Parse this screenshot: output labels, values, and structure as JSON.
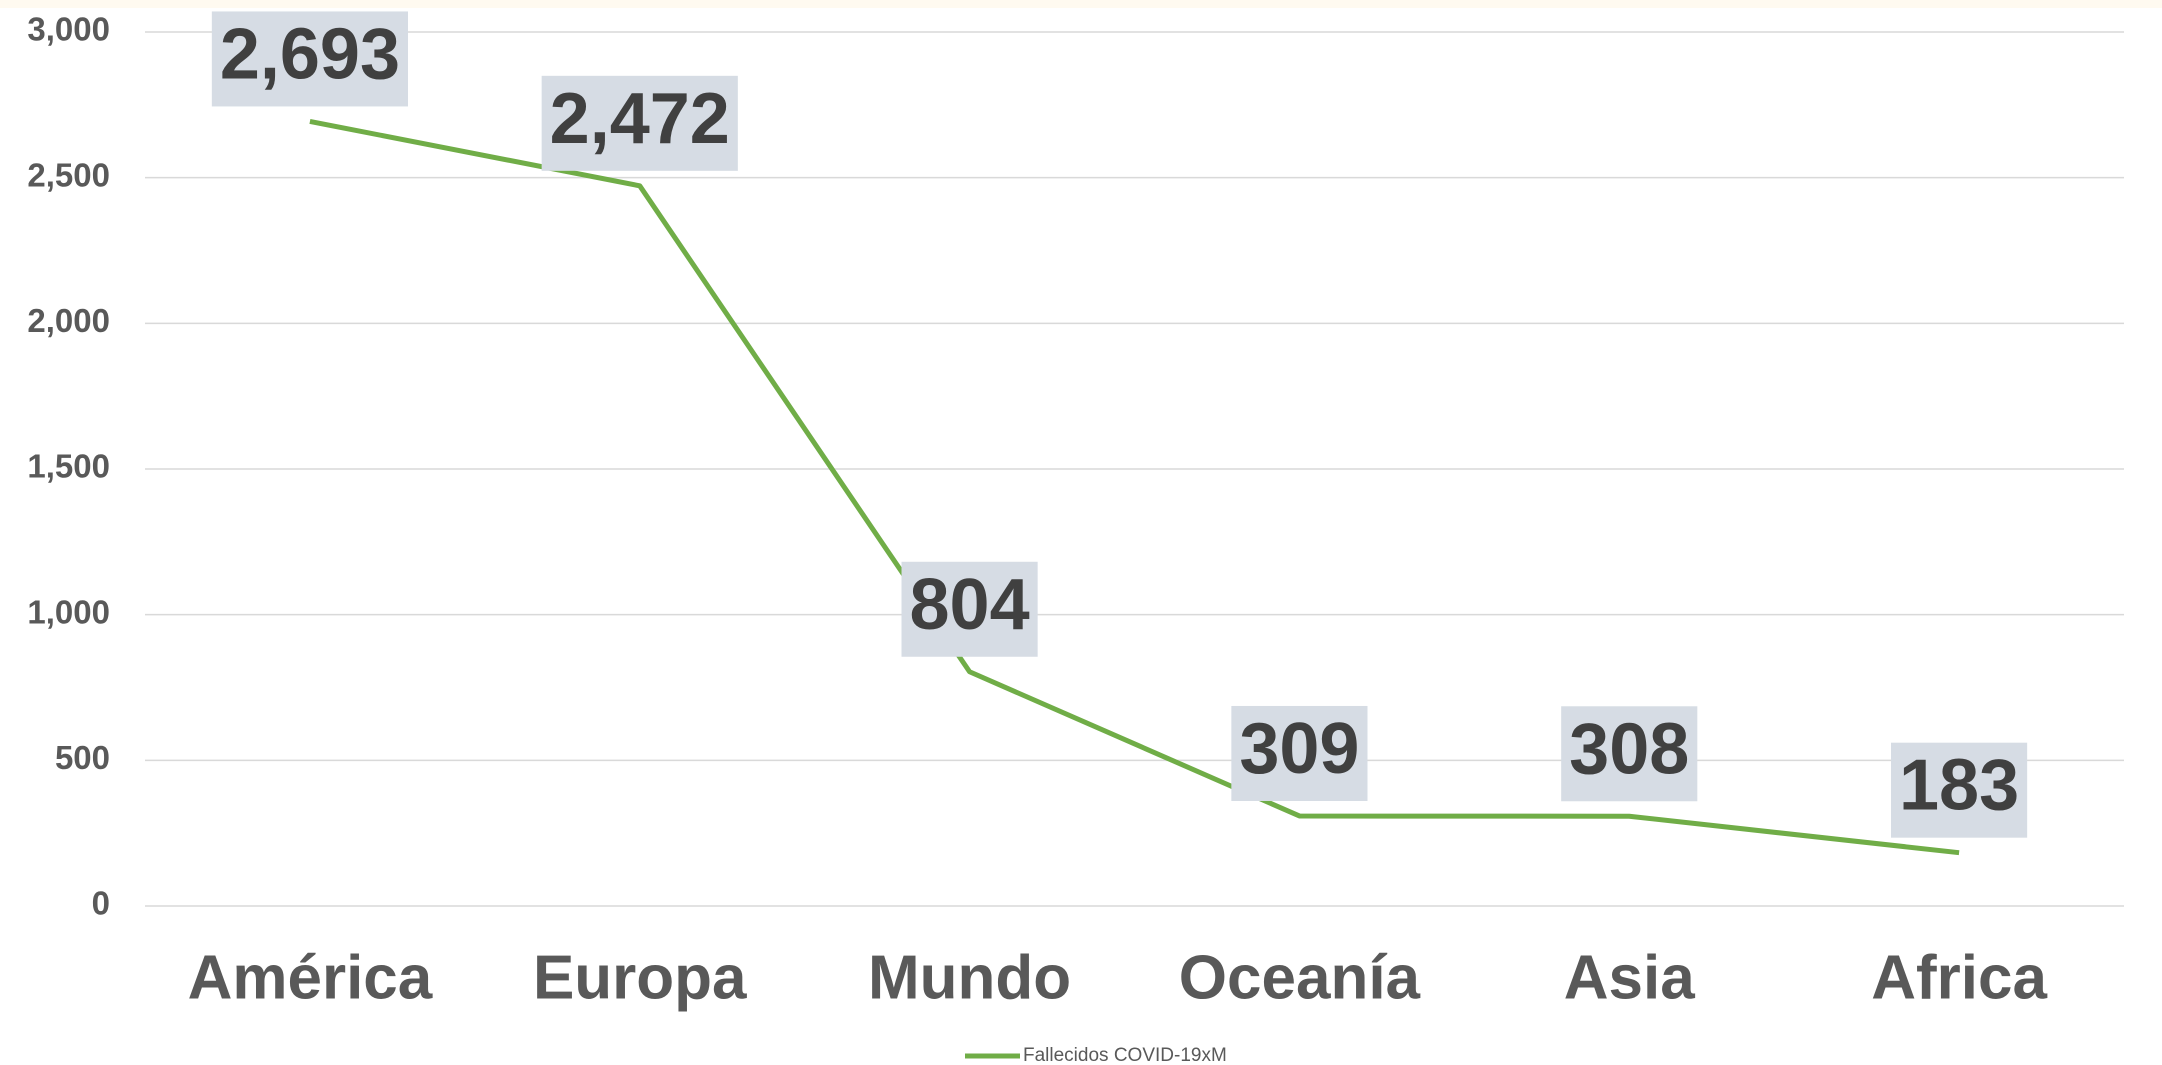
{
  "chart_data": {
    "type": "line",
    "categories": [
      "América",
      "Europa",
      "Mundo",
      "Oceanía",
      "Asia",
      "Africa"
    ],
    "series": [
      {
        "name": "Fallecidos  COVID-19xM",
        "color": "#70ad47",
        "values": [
          2693,
          2472,
          804,
          309,
          308,
          183
        ],
        "value_labels": [
          "2,693",
          "2,472",
          "804",
          "309",
          "308",
          "183"
        ]
      }
    ],
    "ylim": [
      0,
      3000
    ],
    "yticks": [
      0,
      500,
      {
        "value": 1000,
        "label": "1,000"
      },
      {
        "value": 1500,
        "label": "1,500"
      },
      {
        "value": 2000,
        "label": "2,000"
      },
      {
        "value": 2500,
        "label": "2,500"
      },
      {
        "value": 3000,
        "label": "3,000"
      }
    ],
    "grid": true,
    "legend": "bottom"
  }
}
